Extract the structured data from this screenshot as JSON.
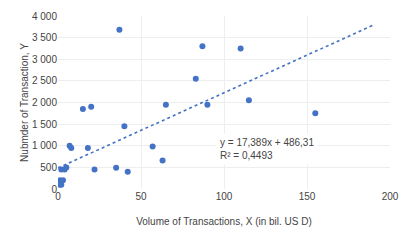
{
  "chart_data": {
    "type": "scatter",
    "xlabel": "Volume of Transactions, X (in bil. US D)",
    "ylabel": "Nubmder of Transaction, Y",
    "series": [
      {
        "type": "scatter",
        "color": "#4472C4",
        "marker": "circle",
        "x": [
          1,
          1,
          2,
          2,
          3,
          4,
          5,
          7,
          8,
          15,
          18,
          20,
          22,
          35,
          37,
          40,
          42,
          57,
          63,
          65,
          83,
          87,
          90,
          110,
          115,
          155
        ],
        "values": [
          100,
          200,
          100,
          450,
          200,
          450,
          500,
          1000,
          950,
          1850,
          950,
          1900,
          450,
          490,
          3680,
          1450,
          400,
          980,
          660,
          1950,
          2550,
          3300,
          1950,
          3250,
          2050,
          1750
        ]
      },
      {
        "type": "line",
        "color": "#4472C4",
        "line_style": "dotted",
        "x": [
          0,
          190
        ],
        "values": [
          486.31,
          3790.22
        ]
      }
    ],
    "annotations": [
      {
        "text": "y = 17,389x + 486,31\nR² = 0,4493",
        "x": 95,
        "y": 1300
      }
    ],
    "xlim": [
      0,
      200
    ],
    "ylim": [
      0,
      4000
    ],
    "xticks": [
      0,
      50,
      100,
      150,
      200
    ],
    "yticks": [
      0,
      500,
      {
        "value": 1000,
        "label": "1 000"
      },
      {
        "value": 1500,
        "label": "1 500"
      },
      {
        "value": 2000,
        "label": "2 000"
      },
      {
        "value": 2500,
        "label": "2 500"
      },
      {
        "value": 3000,
        "label": "3 000"
      },
      {
        "value": 3500,
        "label": "3 500"
      },
      {
        "value": 4000,
        "label": "4 000"
      }
    ],
    "grid": true
  }
}
